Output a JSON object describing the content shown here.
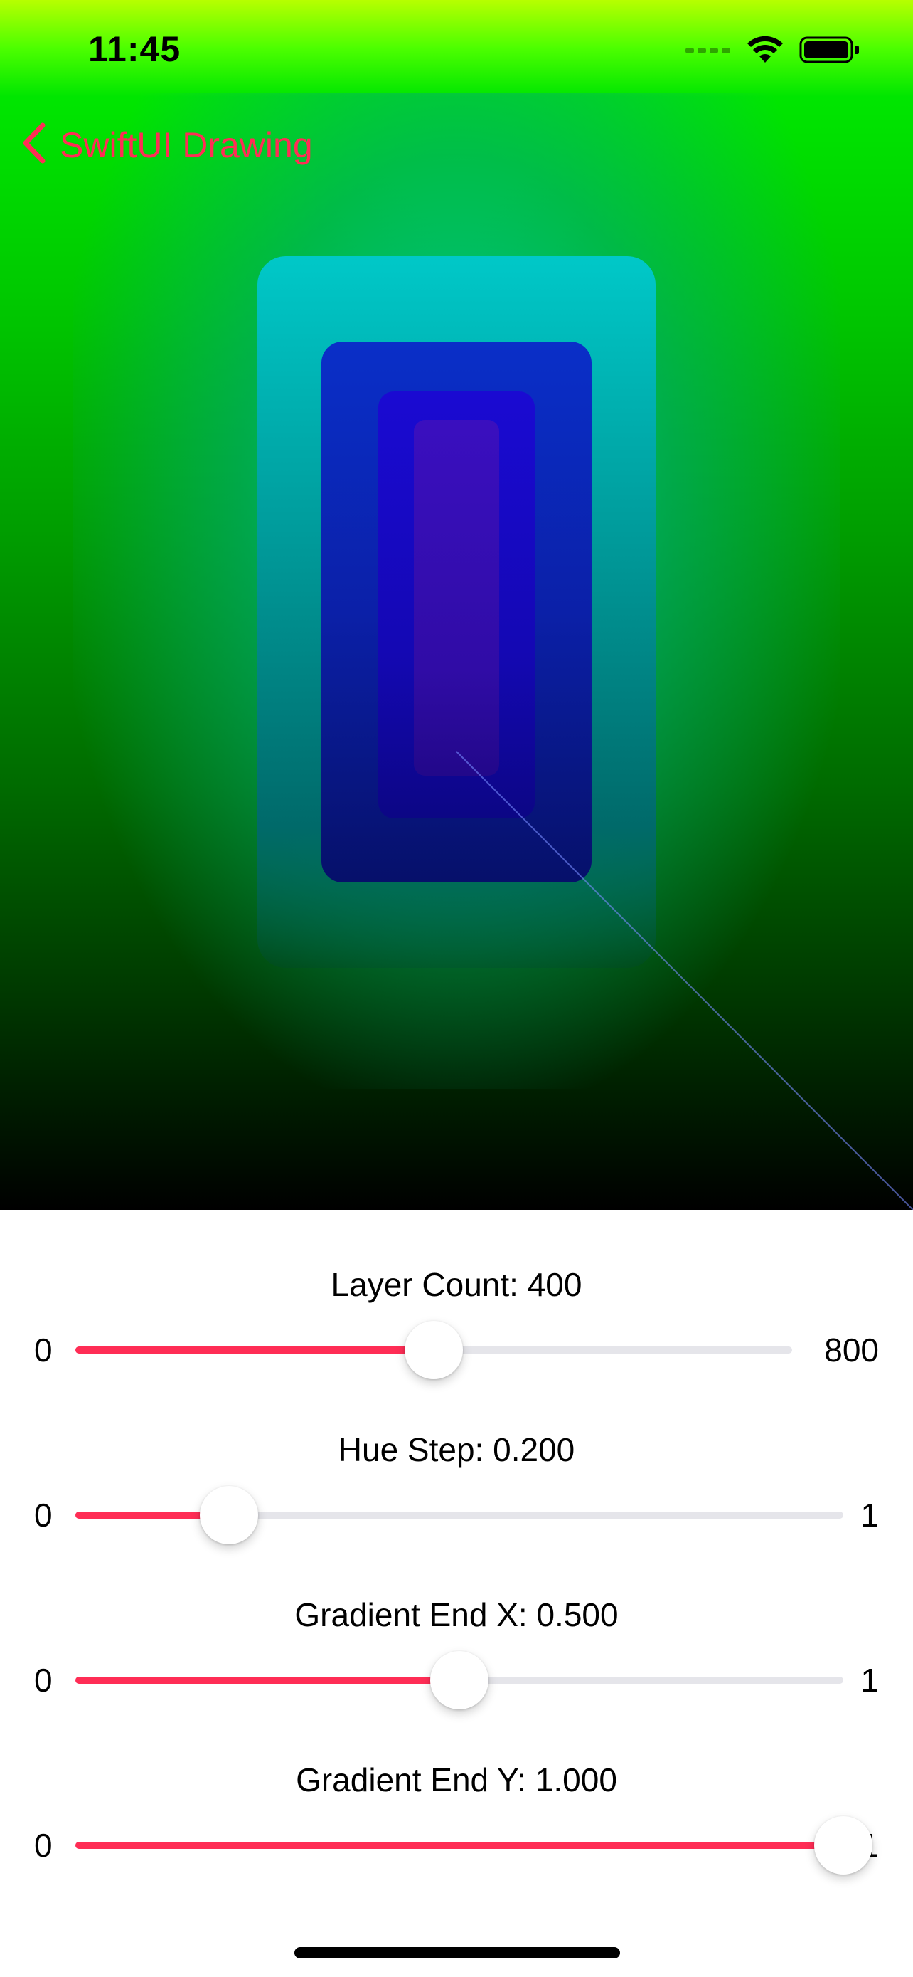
{
  "status_bar": {
    "time": "11:45",
    "icons": [
      "cellular-signal-icon",
      "wifi-icon",
      "battery-icon"
    ]
  },
  "nav": {
    "back_label": "SwiftUI Drawing",
    "accent_color": "#ff2d55"
  },
  "sliders": [
    {
      "title": "Layer Count: 400",
      "min_label": "0",
      "max_label": "800",
      "fraction": 0.5
    },
    {
      "title": "Hue Step: 0.200",
      "min_label": "0",
      "max_label": "1",
      "fraction": 0.2
    },
    {
      "title": "Gradient End X: 0.500",
      "min_label": "0",
      "max_label": "1",
      "fraction": 0.5
    },
    {
      "title": "Gradient End Y: 1.000",
      "min_label": "0",
      "max_label": "1",
      "fraction": 1.0
    }
  ],
  "colors": {
    "track_fill": "#ff2d55",
    "track_empty": "#e5e5ea"
  }
}
